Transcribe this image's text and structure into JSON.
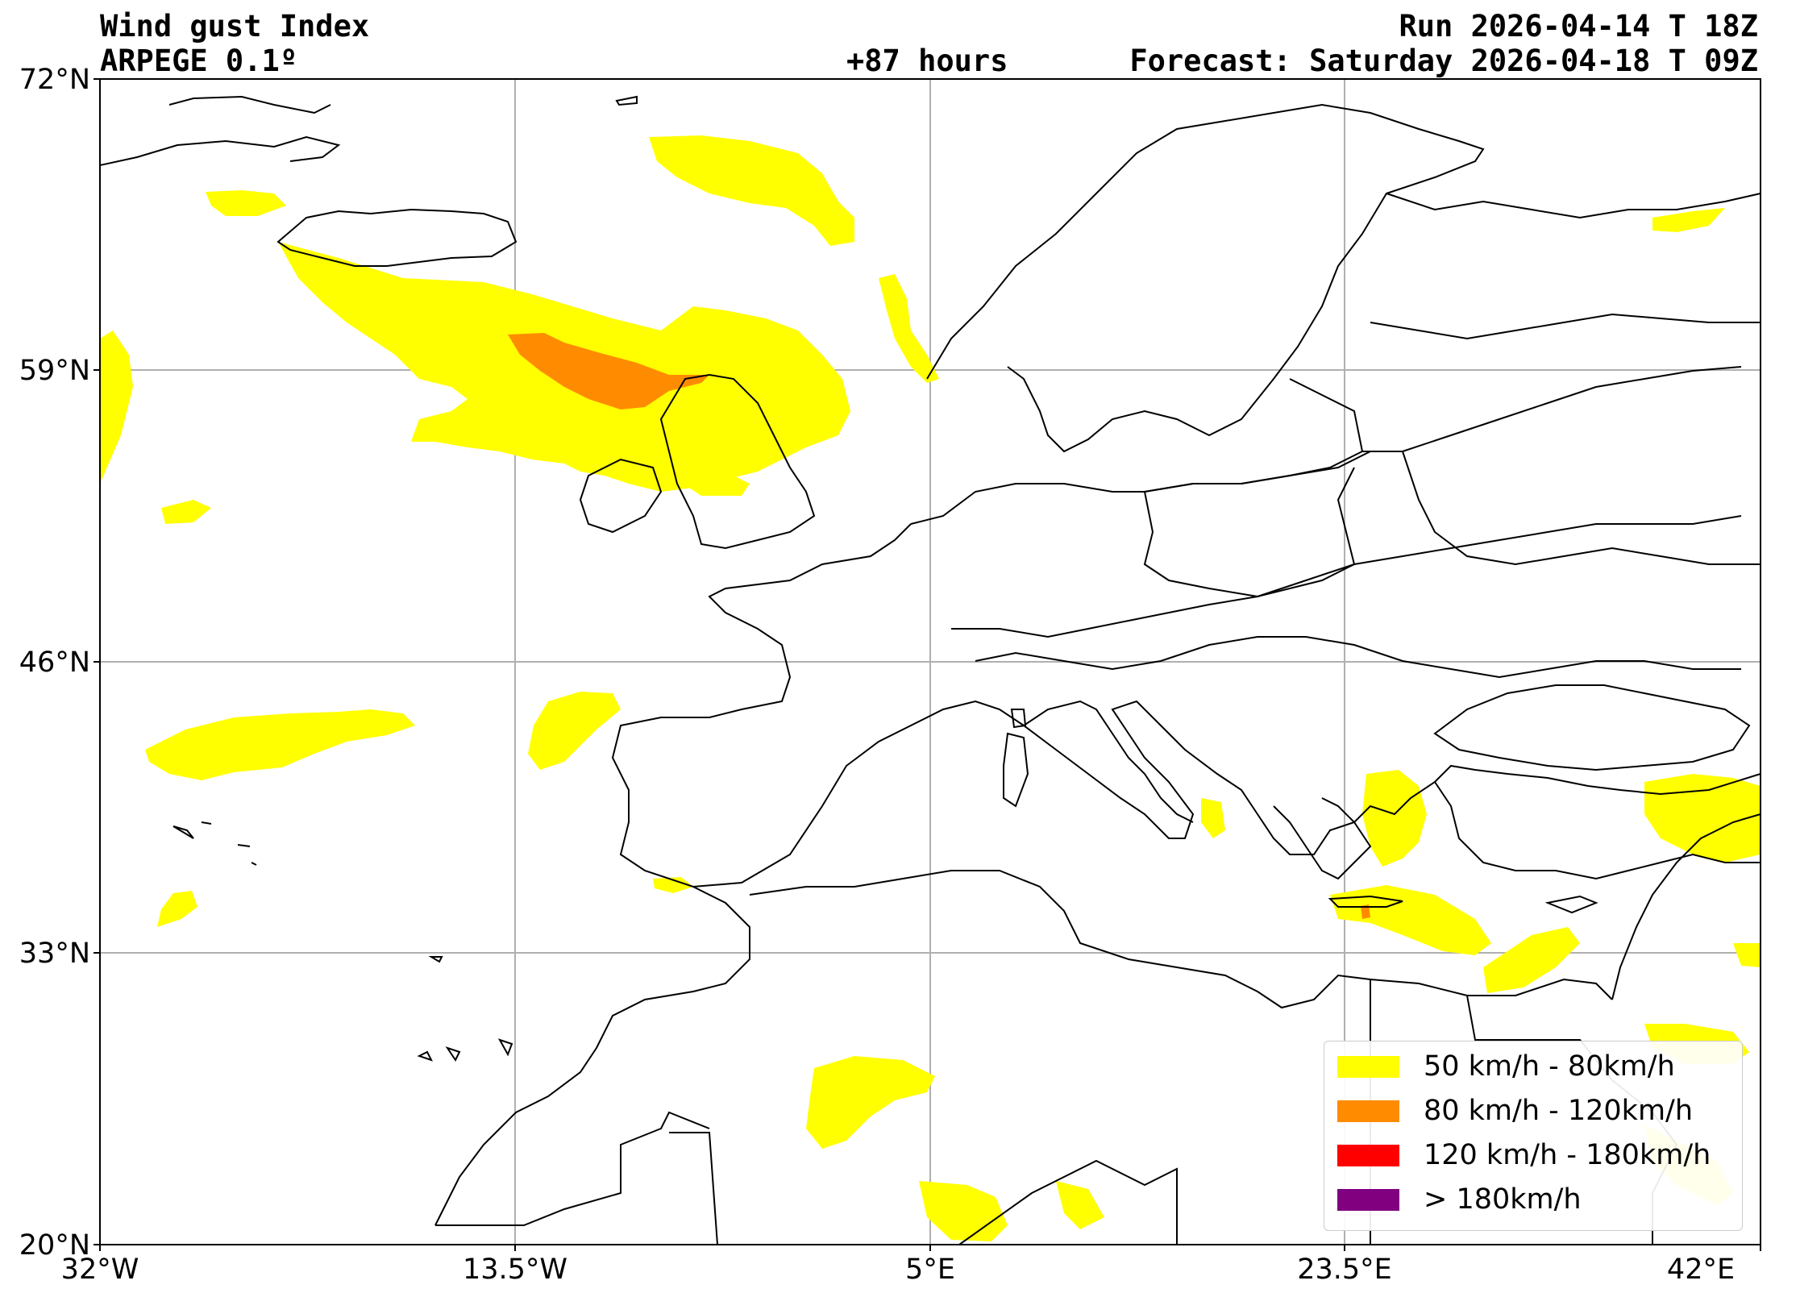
{
  "header": {
    "title_left": "Wind gust Index",
    "model_left": "ARPEGE 0.1º",
    "run": "Run 2026-04-14 T 18Z",
    "lead": "+87 hours",
    "forecast": "Forecast: Saturday 2026-04-18 T 09Z"
  },
  "axes": {
    "lat_labels": [
      "72°N",
      "59°N",
      "46°N",
      "33°N",
      "20°N"
    ],
    "lon_labels": [
      "32°W",
      "13.5°W",
      "5°E",
      "23.5°E",
      "42°E"
    ]
  },
  "legend": {
    "items": [
      {
        "label": "50 km/h - 80km/h",
        "color": "#ffff00"
      },
      {
        "label": "80 km/h - 120km/h",
        "color": "#ff8c00"
      },
      {
        "label": "120 km/h - 180km/h",
        "color": "#ff0000"
      },
      {
        "label": "> 180km/h",
        "color": "#800080"
      }
    ]
  },
  "colors": {
    "frame": "#000000",
    "grid": "#b0b0b0",
    "coast": "#000000"
  }
}
